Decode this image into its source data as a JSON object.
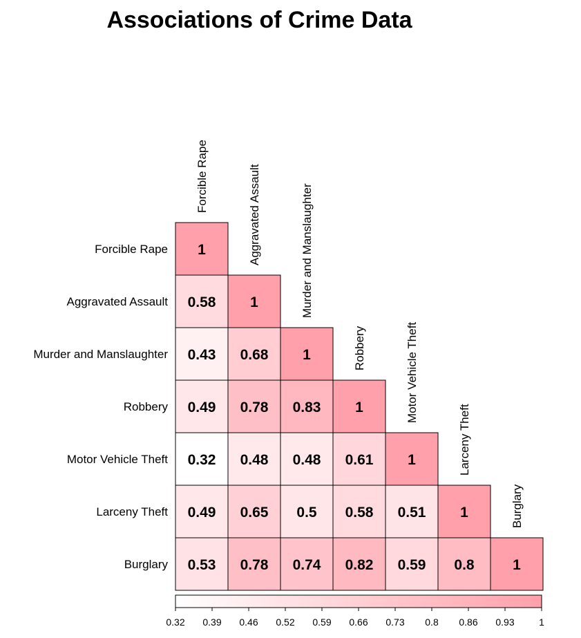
{
  "chart_data": {
    "type": "heatmap",
    "title": "Associations of Crime Data",
    "variables": [
      "Forcible Rape",
      "Aggravated Assault",
      "Murder and Manslaughter",
      "Robbery",
      "Motor Vehicle Theft",
      "Larceny Theft",
      "Burglary"
    ],
    "matrix": [
      [
        1
      ],
      [
        0.58,
        1
      ],
      [
        0.43,
        0.68,
        1
      ],
      [
        0.49,
        0.78,
        0.83,
        1
      ],
      [
        0.32,
        0.48,
        0.48,
        0.61,
        1
      ],
      [
        0.49,
        0.65,
        0.5,
        0.58,
        0.51,
        1
      ],
      [
        0.53,
        0.78,
        0.74,
        0.82,
        0.59,
        0.8,
        1
      ]
    ],
    "matrix_labels": [
      [
        "1"
      ],
      [
        "0.58",
        "1"
      ],
      [
        "0.43",
        "0.68",
        "1"
      ],
      [
        "0.49",
        "0.78",
        "0.83",
        "1"
      ],
      [
        "0.32",
        "0.48",
        "0.48",
        "0.61",
        "1"
      ],
      [
        "0.49",
        "0.65",
        "0.5",
        "0.58",
        "0.51",
        "1"
      ],
      [
        "0.53",
        "0.78",
        "0.74",
        "0.82",
        "0.59",
        "0.8",
        "1"
      ]
    ],
    "layout": "lower-triangle",
    "color_scale": {
      "min": 0.32,
      "max": 1,
      "low_color": "#ffffff",
      "high_color": "#ffa0aa"
    },
    "colorbar": {
      "orientation": "horizontal",
      "position": "bottom",
      "ticks": [
        "0.32",
        "0.39",
        "0.46",
        "0.52",
        "0.59",
        "0.66",
        "0.73",
        "0.8",
        "0.86",
        "0.93",
        "1"
      ]
    },
    "grid": false
  }
}
